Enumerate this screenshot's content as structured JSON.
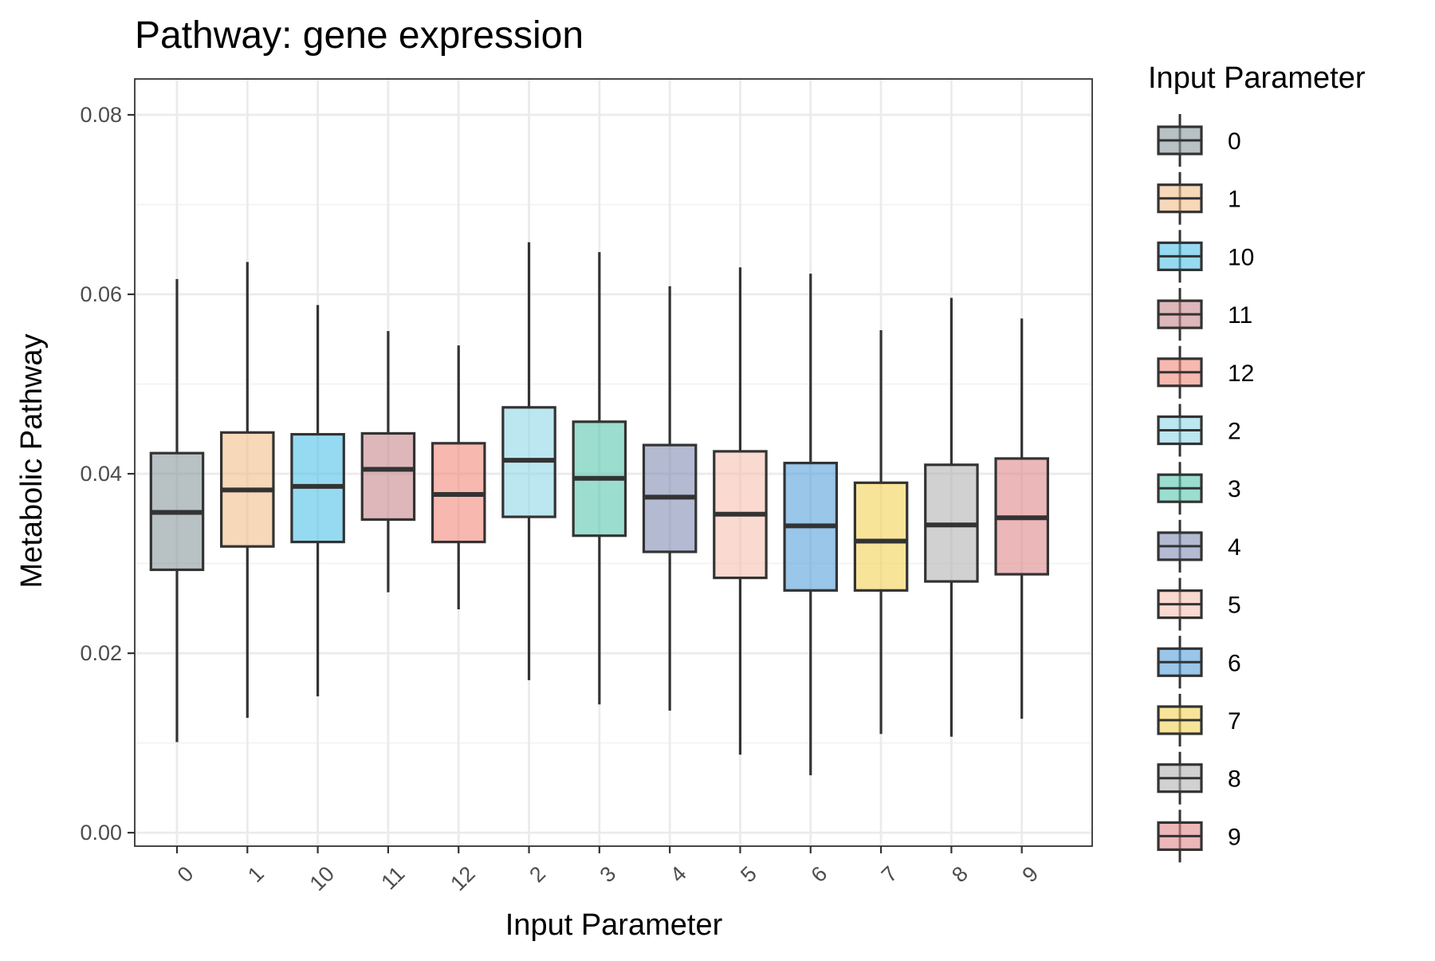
{
  "chart_data": {
    "type": "box",
    "title": "Pathway: gene expression",
    "xlabel": "Input Parameter",
    "ylabel": "Metabolic Pathway",
    "ylim": [
      -0.0015,
      0.084
    ],
    "yticks": [
      0.0,
      0.02,
      0.04,
      0.06,
      0.08
    ],
    "ytick_labels": [
      "0.00",
      "0.02",
      "0.04",
      "0.06",
      "0.08"
    ],
    "grid": true,
    "legend": {
      "title": "Input Parameter",
      "placement": "right"
    },
    "categories": [
      "0",
      "1",
      "10",
      "11",
      "12",
      "2",
      "3",
      "4",
      "5",
      "6",
      "7",
      "8",
      "9"
    ],
    "boxes": [
      {
        "label": "0",
        "color": "#8C9BA0",
        "whisker_low": 0.0101,
        "q1": 0.0293,
        "median": 0.0357,
        "q3": 0.0423,
        "whisker_high": 0.0617
      },
      {
        "label": "1",
        "color": "#F2C08D",
        "whisker_low": 0.0128,
        "q1": 0.0319,
        "median": 0.0382,
        "q3": 0.0446,
        "whisker_high": 0.0636
      },
      {
        "label": "10",
        "color": "#55C3E8",
        "whisker_low": 0.0152,
        "q1": 0.0324,
        "median": 0.0386,
        "q3": 0.0444,
        "whisker_high": 0.0588
      },
      {
        "label": "11",
        "color": "#C98A90",
        "whisker_low": 0.0268,
        "q1": 0.0349,
        "median": 0.0405,
        "q3": 0.0445,
        "whisker_high": 0.0559
      },
      {
        "label": "12",
        "color": "#F28C80",
        "whisker_low": 0.0249,
        "q1": 0.0324,
        "median": 0.0377,
        "q3": 0.0434,
        "whisker_high": 0.0543
      },
      {
        "label": "2",
        "color": "#93D8E6",
        "whisker_low": 0.017,
        "q1": 0.0352,
        "median": 0.0415,
        "q3": 0.0474,
        "whisker_high": 0.0658
      },
      {
        "label": "3",
        "color": "#5EC8B2",
        "whisker_low": 0.0143,
        "q1": 0.0331,
        "median": 0.0395,
        "q3": 0.0458,
        "whisker_high": 0.0647
      },
      {
        "label": "4",
        "color": "#8590B5",
        "whisker_low": 0.0136,
        "q1": 0.0313,
        "median": 0.0374,
        "q3": 0.0432,
        "whisker_high": 0.0609
      },
      {
        "label": "5",
        "color": "#F7C2B3",
        "whisker_low": 0.0087,
        "q1": 0.0284,
        "median": 0.0355,
        "q3": 0.0425,
        "whisker_high": 0.063
      },
      {
        "label": "6",
        "color": "#5AA3DC",
        "whisker_low": 0.0064,
        "q1": 0.027,
        "median": 0.0342,
        "q3": 0.0412,
        "whisker_high": 0.0623
      },
      {
        "label": "7",
        "color": "#F4D45A",
        "whisker_low": 0.011,
        "q1": 0.027,
        "median": 0.0325,
        "q3": 0.039,
        "whisker_high": 0.056
      },
      {
        "label": "8",
        "color": "#B5B5B5",
        "whisker_low": 0.0107,
        "q1": 0.028,
        "median": 0.0343,
        "q3": 0.041,
        "whisker_high": 0.0596
      },
      {
        "label": "9",
        "color": "#E08A8C",
        "whisker_low": 0.0127,
        "q1": 0.0288,
        "median": 0.0351,
        "q3": 0.0417,
        "whisker_high": 0.0573
      }
    ]
  }
}
